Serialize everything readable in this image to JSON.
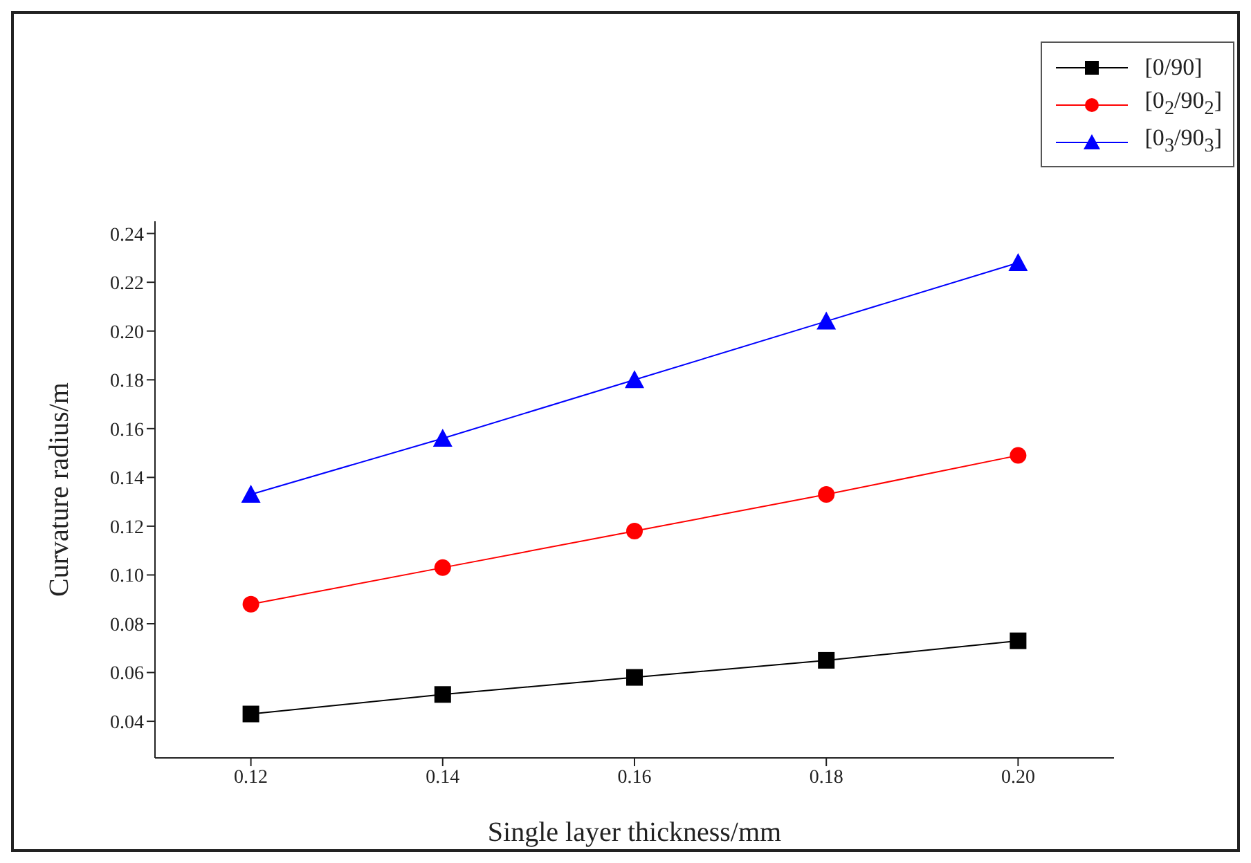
{
  "chart_data": {
    "type": "line",
    "xlabel": "Single layer thickness/mm",
    "ylabel": "Curvature radius/m",
    "x": [
      0.12,
      0.14,
      0.16,
      0.18,
      0.2
    ],
    "series": [
      {
        "name": "[0/90]",
        "color": "#000000",
        "marker": "square",
        "values": [
          0.043,
          0.051,
          0.058,
          0.065,
          0.073
        ]
      },
      {
        "name": "[0$_{2}$/90$_{2}$]",
        "color": "#ff0000",
        "marker": "circle",
        "values": [
          0.088,
          0.103,
          0.118,
          0.133,
          0.149
        ]
      },
      {
        "name": "[0$_{3}$/90$_{3}$]",
        "color": "#0000ff",
        "marker": "triangle",
        "values": [
          0.133,
          0.156,
          0.18,
          0.204,
          0.228
        ]
      }
    ],
    "xlim": [
      0.11,
      0.21
    ],
    "xticks": [
      {
        "value": 0.12,
        "label": "0.12"
      },
      {
        "value": 0.14,
        "label": "0.14"
      },
      {
        "value": 0.16,
        "label": "0.16"
      },
      {
        "value": 0.18,
        "label": "0.18"
      },
      {
        "value": 0.2,
        "label": "0.20"
      }
    ],
    "ylim": [
      0.025,
      0.245
    ],
    "yticks": [
      {
        "value": 0.04,
        "label": "0.04"
      },
      {
        "value": 0.06,
        "label": "0.06"
      },
      {
        "value": 0.08,
        "label": "0.08"
      },
      {
        "value": 0.1,
        "label": "0.10"
      },
      {
        "value": 0.12,
        "label": "0.12"
      },
      {
        "value": 0.14,
        "label": "0.14"
      },
      {
        "value": 0.16,
        "label": "0.16"
      },
      {
        "value": 0.18,
        "label": "0.18"
      },
      {
        "value": 0.2,
        "label": "0.20"
      },
      {
        "value": 0.22,
        "label": "0.22"
      },
      {
        "value": 0.24,
        "label": "0.24"
      }
    ],
    "grid": false,
    "legend": "top right",
    "line_style": "solid"
  }
}
